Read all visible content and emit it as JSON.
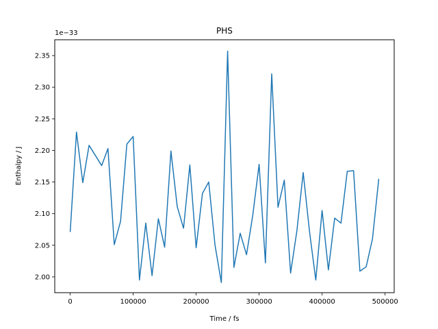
{
  "chart_data": {
    "type": "line",
    "title": "PHS",
    "xlabel": "Time / fs",
    "ylabel": "Enthalpy / J",
    "y_offset_label": "1e−33",
    "xlim": [
      -24500,
      514500
    ],
    "ylim": [
      1.975,
      2.375
    ],
    "x_ticks": [
      0,
      100000,
      200000,
      300000,
      400000,
      500000
    ],
    "x_tick_labels": [
      "0",
      "100000",
      "200000",
      "300000",
      "400000",
      "500000"
    ],
    "y_ticks": [
      2.0,
      2.05,
      2.1,
      2.15,
      2.2,
      2.25,
      2.3,
      2.35
    ],
    "y_tick_labels": [
      "2.00",
      "2.05",
      "2.10",
      "2.15",
      "2.20",
      "2.25",
      "2.30",
      "2.35"
    ],
    "grid": false,
    "series": [
      {
        "color": "#1f77b4",
        "x": [
          0,
          10000,
          20000,
          30000,
          40000,
          50000,
          60000,
          70000,
          80000,
          90000,
          100000,
          110000,
          120000,
          130000,
          140000,
          150000,
          160000,
          170000,
          180000,
          190000,
          200000,
          210000,
          220000,
          230000,
          240000,
          250000,
          260000,
          270000,
          280000,
          290000,
          300000,
          310000,
          320000,
          330000,
          340000,
          350000,
          360000,
          370000,
          380000,
          390000,
          400000,
          410000,
          420000,
          430000,
          440000,
          450000,
          460000,
          470000,
          480000,
          490000
        ],
        "y": [
          2.071,
          2.229,
          2.149,
          2.208,
          2.192,
          2.176,
          2.203,
          2.051,
          2.088,
          2.21,
          2.222,
          1.995,
          2.085,
          2.002,
          2.092,
          2.047,
          2.199,
          2.111,
          2.077,
          2.177,
          2.046,
          2.132,
          2.15,
          2.05,
          1.991,
          2.357,
          2.015,
          2.069,
          2.035,
          2.098,
          2.178,
          2.022,
          2.321,
          2.11,
          2.153,
          2.006,
          2.073,
          2.165,
          2.072,
          1.995,
          2.105,
          2.011,
          2.093,
          2.085,
          2.167,
          2.168,
          2.009,
          2.016,
          2.06,
          2.155
        ]
      }
    ]
  }
}
